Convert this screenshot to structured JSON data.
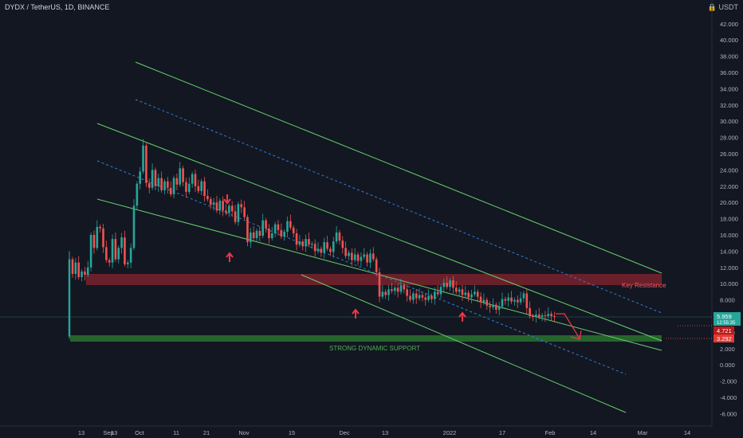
{
  "header": {
    "symbol_title": "DYDX / TetherUS, 1D, BINANCE",
    "currency": "USDT",
    "lock_glyph": "🔒"
  },
  "chart_data": {
    "type": "candlestick",
    "title": "DYDX / TetherUS, 1D, BINANCE",
    "ylim": [
      -7,
      44
    ],
    "x_ticks": [
      "13",
      "Sep",
      "13",
      "Oct",
      "11",
      "21",
      "Nov",
      "15",
      "Dec",
      "13",
      "2022",
      "17",
      "Feb",
      "14",
      "Mar",
      "14"
    ],
    "y_ticks": [
      "42.000",
      "40.000",
      "38.000",
      "36.000",
      "34.000",
      "32.000",
      "30.000",
      "28.000",
      "26.000",
      "24.000",
      "22.000",
      "20.000",
      "18.000",
      "16.000",
      "14.000",
      "12.000",
      "10.000",
      "8.000",
      "6.000",
      "4.000",
      "2.000",
      "0.000",
      "-2.000",
      "-4.000",
      "-6.000"
    ],
    "current_price": "5.959",
    "countdown": "12:55:35",
    "level_1": "4.721",
    "level_2": "3.292",
    "annotations": {
      "key_resistance": "Key Resistance",
      "strong_support": "STRONG DYNAMIC SUPPORT"
    },
    "zones": [
      {
        "name": "Key Resistance",
        "low": 10.4,
        "high": 11.4,
        "color": "#b22833"
      },
      {
        "name": "Strong Dynamic Support",
        "low": 3.0,
        "high": 3.7,
        "color": "#2e7d32"
      }
    ],
    "colors": {
      "up": "#26a69a",
      "down": "#ef5350",
      "channel": "#66d06b",
      "midline": "#2f7fd4",
      "arrow": "#f23645",
      "background": "#131722"
    }
  }
}
